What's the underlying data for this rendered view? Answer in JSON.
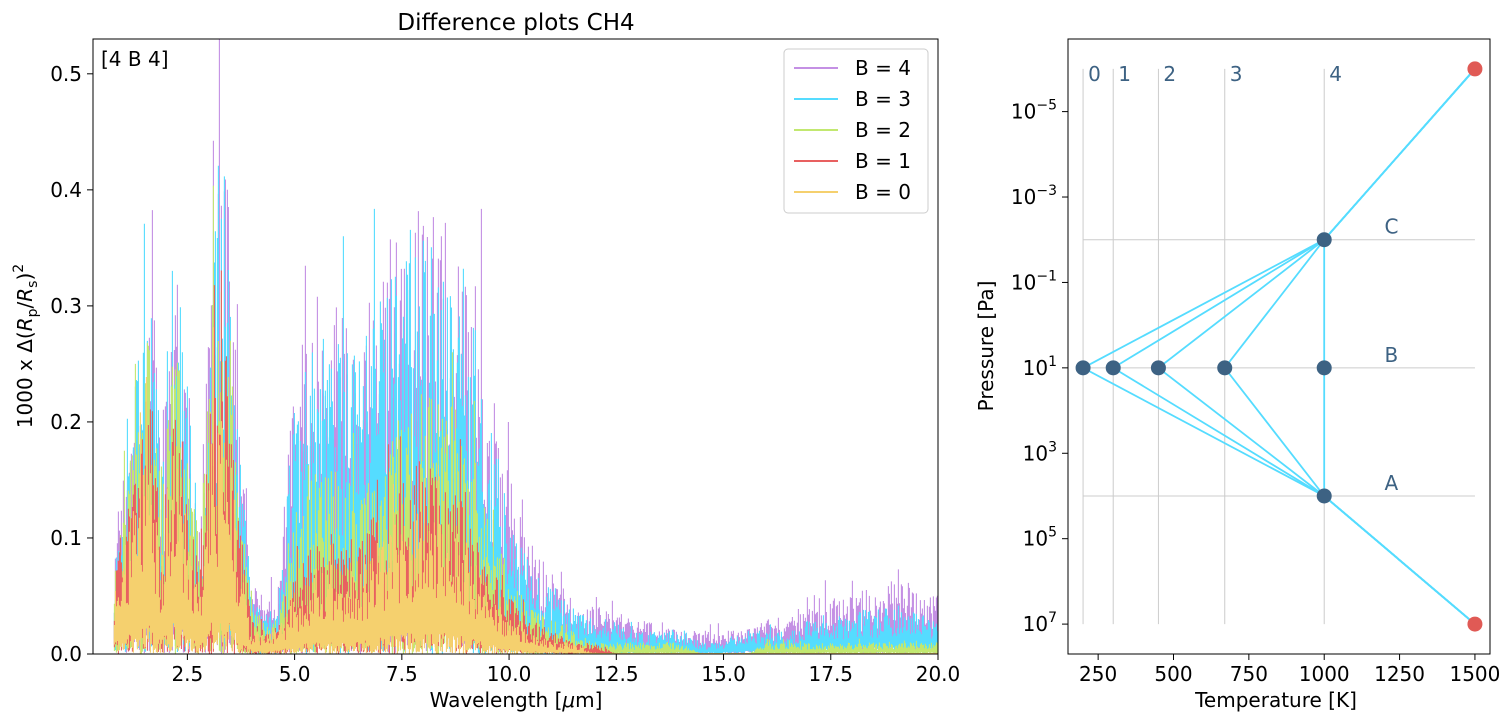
{
  "chart_data": [
    {
      "type": "line",
      "title": "Difference plots CH4",
      "corner_label": "[4 B 4]",
      "xlabel": "Wavelength [μm]",
      "ylabel": "1000 x Δ(R_p/R_s)^2",
      "xlim": [
        0.3,
        20.0
      ],
      "ylim": [
        0.0,
        0.53
      ],
      "x_ticks": [
        2.5,
        5.0,
        7.5,
        10.0,
        12.5,
        15.0,
        17.5,
        20.0
      ],
      "x_tick_labels": [
        "2.5",
        "5.0",
        "7.5",
        "10.0",
        "12.5",
        "15.0",
        "17.5",
        "20.0"
      ],
      "y_ticks": [
        0.0,
        0.1,
        0.2,
        0.3,
        0.4,
        0.5
      ],
      "y_tick_labels": [
        "0.0",
        "0.1",
        "0.2",
        "0.3",
        "0.4",
        "0.5"
      ],
      "grid": false,
      "legend_position": "top-right",
      "x": [
        0.8,
        1.2,
        1.6,
        1.9,
        2.2,
        2.5,
        2.8,
        3.1,
        3.4,
        3.7,
        4.0,
        4.3,
        4.6,
        5.0,
        5.5,
        6.0,
        6.5,
        7.0,
        7.5,
        8.0,
        8.5,
        9.0,
        9.5,
        10.0,
        10.5,
        11.0,
        11.5,
        12.0,
        12.5,
        13.0,
        13.5,
        14.0,
        14.5,
        15.0,
        15.5,
        16.0,
        16.5,
        17.0,
        17.5,
        18.0,
        18.5,
        19.0,
        19.5,
        20.0
      ],
      "series": [
        {
          "name": "B = 4",
          "color": "#c490e4",
          "values": [
            0.1,
            0.21,
            0.36,
            0.2,
            0.38,
            0.25,
            0.12,
            0.4,
            0.45,
            0.2,
            0.06,
            0.05,
            0.05,
            0.25,
            0.31,
            0.3,
            0.28,
            0.34,
            0.37,
            0.4,
            0.39,
            0.38,
            0.25,
            0.16,
            0.09,
            0.07,
            0.05,
            0.04,
            0.04,
            0.03,
            0.03,
            0.02,
            0.02,
            0.02,
            0.02,
            0.03,
            0.03,
            0.04,
            0.05,
            0.05,
            0.06,
            0.07,
            0.06,
            0.05
          ]
        },
        {
          "name": "B = 3",
          "color": "#55dcff",
          "values": [
            0.1,
            0.2,
            0.35,
            0.18,
            0.37,
            0.24,
            0.11,
            0.39,
            0.43,
            0.19,
            0.05,
            0.04,
            0.04,
            0.22,
            0.28,
            0.27,
            0.26,
            0.31,
            0.34,
            0.36,
            0.35,
            0.33,
            0.22,
            0.13,
            0.08,
            0.06,
            0.04,
            0.03,
            0.03,
            0.02,
            0.02,
            0.02,
            0.01,
            0.01,
            0.02,
            0.02,
            0.02,
            0.03,
            0.03,
            0.04,
            0.04,
            0.04,
            0.04,
            0.03
          ]
        },
        {
          "name": "B = 2",
          "color": "#c2e870",
          "values": [
            0.09,
            0.17,
            0.28,
            0.14,
            0.3,
            0.19,
            0.09,
            0.33,
            0.35,
            0.15,
            0.04,
            0.03,
            0.03,
            0.12,
            0.17,
            0.16,
            0.15,
            0.19,
            0.22,
            0.24,
            0.23,
            0.2,
            0.12,
            0.07,
            0.04,
            0.03,
            0.02,
            0.01,
            0.01,
            0.01,
            0.01,
            0.01,
            0.0,
            0.0,
            0.0,
            0.01,
            0.01,
            0.01,
            0.01,
            0.01,
            0.01,
            0.01,
            0.01,
            0.01
          ]
        },
        {
          "name": "B = 1",
          "color": "#e86060",
          "values": [
            0.08,
            0.14,
            0.23,
            0.11,
            0.24,
            0.15,
            0.07,
            0.26,
            0.27,
            0.12,
            0.03,
            0.02,
            0.02,
            0.07,
            0.1,
            0.1,
            0.1,
            0.13,
            0.15,
            0.17,
            0.16,
            0.13,
            0.08,
            0.05,
            0.03,
            0.02,
            0.01,
            0.01,
            0.0,
            0.0,
            0.0,
            0.0,
            0.0,
            0.0,
            0.0,
            0.0,
            0.0,
            0.0,
            0.0,
            0.0,
            0.0,
            0.0,
            0.0,
            0.0
          ]
        },
        {
          "name": "B = 0",
          "color": "#f5d06e",
          "values": [
            0.07,
            0.12,
            0.19,
            0.09,
            0.19,
            0.12,
            0.05,
            0.21,
            0.22,
            0.09,
            0.02,
            0.02,
            0.02,
            0.05,
            0.07,
            0.07,
            0.07,
            0.1,
            0.12,
            0.13,
            0.12,
            0.1,
            0.06,
            0.03,
            0.02,
            0.01,
            0.01,
            0.0,
            0.0,
            0.0,
            0.0,
            0.0,
            0.0,
            0.0,
            0.0,
            0.0,
            0.0,
            0.0,
            0.0,
            0.0,
            0.0,
            0.0,
            0.0,
            0.0
          ]
        }
      ]
    },
    {
      "type": "scatter",
      "xlabel": "Temperature [K]",
      "ylabel": "Pressure [Pa]",
      "xlim": [
        150,
        1550
      ],
      "ylim_log10": [
        7.7,
        -6.7
      ],
      "y_scale": "log",
      "y_inverted": true,
      "x_ticks": [
        250,
        500,
        750,
        1000,
        1250,
        1500
      ],
      "x_tick_labels": [
        "250",
        "500",
        "750",
        "1000",
        "1250",
        "1500"
      ],
      "y_ticks_log10": [
        -5,
        -3,
        -1,
        1,
        3,
        5,
        7
      ],
      "y_tick_labels": [
        "10^-5",
        "10^-3",
        "10^-1",
        "10^1",
        "10^3",
        "10^5",
        "10^7"
      ],
      "grid": false,
      "reference_lines": {
        "vertical": [
          {
            "label": "0",
            "x": 200
          },
          {
            "label": "1",
            "x": 300
          },
          {
            "label": "2",
            "x": 450
          },
          {
            "label": "3",
            "x": 670
          },
          {
            "label": "4",
            "x": 1000
          }
        ],
        "horizontal": [
          {
            "label": "C",
            "log10_p": -2
          },
          {
            "label": "B",
            "log10_p": 1
          },
          {
            "label": "A",
            "log10_p": 4
          }
        ],
        "color": "#cccccc",
        "label_color": "#3d6283"
      },
      "points": [
        {
          "T": 200,
          "log10_p": 1,
          "color": "#3d6283"
        },
        {
          "T": 300,
          "log10_p": 1,
          "color": "#3d6283"
        },
        {
          "T": 450,
          "log10_p": 1,
          "color": "#3d6283"
        },
        {
          "T": 670,
          "log10_p": 1,
          "color": "#3d6283"
        },
        {
          "T": 1000,
          "log10_p": 1,
          "color": "#3d6283"
        },
        {
          "T": 1000,
          "log10_p": -2,
          "color": "#3d6283"
        },
        {
          "T": 1000,
          "log10_p": 4,
          "color": "#3d6283"
        },
        {
          "T": 1500,
          "log10_p": -6,
          "color": "#e05a55"
        },
        {
          "T": 1500,
          "log10_p": 7,
          "color": "#e05a55"
        }
      ],
      "profiles": [
        [
          [
            1500,
            -6
          ],
          [
            1000,
            -2
          ],
          [
            200,
            1
          ],
          [
            1000,
            4
          ],
          [
            1500,
            7
          ]
        ],
        [
          [
            1500,
            -6
          ],
          [
            1000,
            -2
          ],
          [
            300,
            1
          ],
          [
            1000,
            4
          ],
          [
            1500,
            7
          ]
        ],
        [
          [
            1500,
            -6
          ],
          [
            1000,
            -2
          ],
          [
            450,
            1
          ],
          [
            1000,
            4
          ],
          [
            1500,
            7
          ]
        ],
        [
          [
            1500,
            -6
          ],
          [
            1000,
            -2
          ],
          [
            670,
            1
          ],
          [
            1000,
            4
          ],
          [
            1500,
            7
          ]
        ],
        [
          [
            1500,
            -6
          ],
          [
            1000,
            -2
          ],
          [
            1000,
            1
          ],
          [
            1000,
            4
          ],
          [
            1500,
            7
          ]
        ]
      ],
      "profile_color": "#55dcff"
    }
  ]
}
